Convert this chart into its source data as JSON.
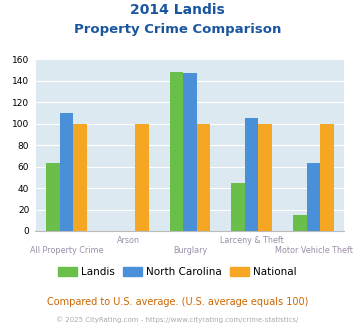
{
  "title_line1": "2014 Landis",
  "title_line2": "Property Crime Comparison",
  "categories": [
    "All Property Crime",
    "Arson",
    "Burglary",
    "Larceny & Theft",
    "Motor Vehicle Theft"
  ],
  "series": {
    "Landis": [
      63,
      0,
      148,
      45,
      15
    ],
    "North Carolina": [
      110,
      0,
      147,
      105,
      63
    ],
    "National": [
      100,
      100,
      100,
      100,
      100
    ]
  },
  "colors": {
    "Landis": "#6abf4b",
    "North Carolina": "#4a90d9",
    "National": "#f5a623"
  },
  "ylim": [
    0,
    160
  ],
  "yticks": [
    0,
    20,
    40,
    60,
    80,
    100,
    120,
    140,
    160
  ],
  "background_color": "#dce9f0",
  "grid_color": "#ffffff",
  "title_color": "#1a56a0",
  "xlabel_color": "#9b8eaa",
  "footnote_text": "Compared to U.S. average. (U.S. average equals 100)",
  "footnote_color": "#cc6600",
  "copyright_text": "© 2025 CityRating.com - https://www.cityrating.com/crime-statistics/",
  "copyright_color": "#aaaaaa",
  "bar_width": 0.22
}
